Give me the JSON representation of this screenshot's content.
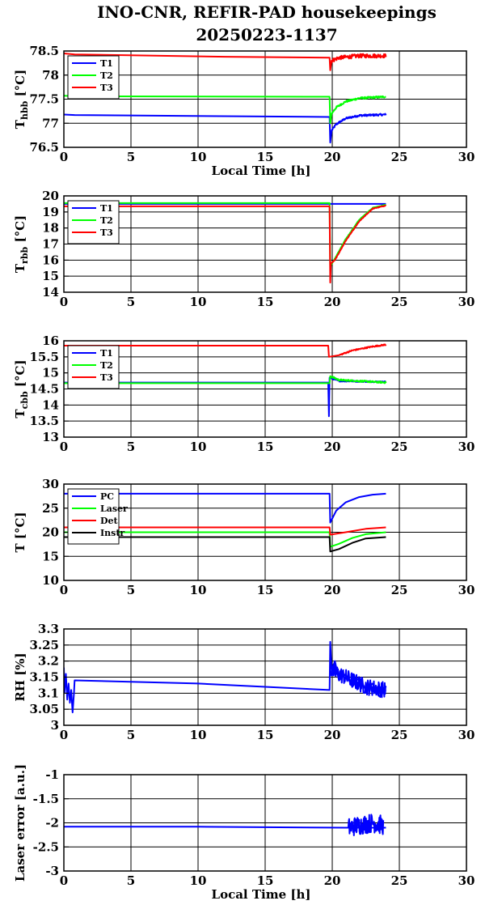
{
  "title": {
    "line1": "INO-CNR, REFIR-PAD housekeepings",
    "line2": "20250223-1137"
  },
  "colors": {
    "blue": "#0000ff",
    "green": "#00ff00",
    "red": "#ff0000",
    "black": "#000000",
    "grid": "#000000",
    "background": "#ffffff"
  },
  "chart_data": [
    {
      "type": "line",
      "id": "thbb",
      "ylabel": "T",
      "ylabel_sub": "hbb",
      "ylabel_unit": "[°C]",
      "xlabel": "Local Time [h]",
      "xlim": [
        0,
        30
      ],
      "ylim": [
        76.5,
        78.5
      ],
      "xticks": [
        "0",
        "5",
        "10",
        "15",
        "20",
        "25",
        "30"
      ],
      "yticks": [
        "76.5",
        "77",
        "77.5",
        "78",
        "78.5"
      ],
      "ytick_values": [
        76.5,
        77,
        77.5,
        78,
        78.5
      ],
      "grid": true,
      "legend_position": "top-left",
      "series": [
        {
          "name": "T1",
          "color": "#0000ff",
          "noise": 0.02,
          "points": [
            [
              0,
              77.18
            ],
            [
              0.8,
              77.17
            ],
            [
              19.8,
              77.13
            ],
            [
              19.85,
              76.6
            ],
            [
              19.95,
              76.85
            ],
            [
              20.3,
              76.98
            ],
            [
              21,
              77.1
            ],
            [
              22,
              77.16
            ],
            [
              24,
              77.18
            ]
          ]
        },
        {
          "name": "T2",
          "color": "#00ff00",
          "noise": 0.02,
          "points": [
            [
              0,
              77.57
            ],
            [
              0.8,
              77.56
            ],
            [
              19.8,
              77.55
            ],
            [
              19.85,
              77.0
            ],
            [
              19.95,
              77.2
            ],
            [
              20.3,
              77.33
            ],
            [
              21,
              77.45
            ],
            [
              22,
              77.52
            ],
            [
              24,
              77.55
            ]
          ]
        },
        {
          "name": "T3",
          "color": "#ff0000",
          "noise": 0.04,
          "points": [
            [
              0,
              78.45
            ],
            [
              0.8,
              78.43
            ],
            [
              12,
              78.38
            ],
            [
              19.8,
              78.36
            ],
            [
              19.85,
              78.1
            ],
            [
              19.95,
              78.3
            ],
            [
              20.5,
              78.36
            ],
            [
              22,
              78.4
            ],
            [
              24,
              78.4
            ]
          ]
        }
      ]
    },
    {
      "type": "line",
      "id": "trbb",
      "ylabel": "T",
      "ylabel_sub": "rbb",
      "ylabel_unit": "[°C]",
      "xlabel": "",
      "xlim": [
        0,
        30
      ],
      "ylim": [
        14,
        20
      ],
      "xticks": [
        "0",
        "5",
        "10",
        "15",
        "20",
        "25",
        "30"
      ],
      "yticks": [
        "14",
        "15",
        "16",
        "17",
        "18",
        "19",
        "20"
      ],
      "ytick_values": [
        14,
        15,
        16,
        17,
        18,
        19,
        20
      ],
      "grid": true,
      "legend_position": "top-left",
      "series": [
        {
          "name": "T1",
          "color": "#0000ff",
          "noise": 0,
          "points": [
            [
              0,
              19.5
            ],
            [
              19.8,
              19.5
            ],
            [
              24,
              19.5
            ]
          ]
        },
        {
          "name": "T2",
          "color": "#00ff00",
          "noise": 0.02,
          "points": [
            [
              0,
              19.55
            ],
            [
              19.8,
              19.55
            ],
            [
              19.85,
              15.6
            ],
            [
              20.2,
              16.1
            ],
            [
              21,
              17.3
            ],
            [
              22,
              18.5
            ],
            [
              23,
              19.25
            ],
            [
              24,
              19.45
            ]
          ]
        },
        {
          "name": "T3",
          "color": "#ff0000",
          "noise": 0.02,
          "points": [
            [
              0,
              19.35
            ],
            [
              19.8,
              19.35
            ],
            [
              19.85,
              14.6
            ],
            [
              19.9,
              15.8
            ],
            [
              20.2,
              16.0
            ],
            [
              21,
              17.2
            ],
            [
              22,
              18.4
            ],
            [
              23,
              19.2
            ],
            [
              24,
              19.4
            ]
          ]
        }
      ]
    },
    {
      "type": "line",
      "id": "tcbb",
      "ylabel": "T",
      "ylabel_sub": "cbb",
      "ylabel_unit": "[°C]",
      "xlabel": "",
      "xlim": [
        0,
        30
      ],
      "ylim": [
        13,
        16
      ],
      "xticks": [
        "0",
        "5",
        "10",
        "15",
        "20",
        "25",
        "30"
      ],
      "yticks": [
        "13",
        "13.5",
        "14",
        "14.5",
        "15",
        "15.5",
        "16"
      ],
      "ytick_values": [
        13,
        13.5,
        14,
        14.5,
        15,
        15.5,
        16
      ],
      "grid": true,
      "legend_position": "top-left",
      "series": [
        {
          "name": "T1",
          "color": "#0000ff",
          "noise": 0.02,
          "points": [
            [
              0,
              14.7
            ],
            [
              12,
              14.7
            ],
            [
              19.7,
              14.7
            ],
            [
              19.75,
              13.65
            ],
            [
              19.8,
              14.85
            ],
            [
              20.5,
              14.75
            ],
            [
              24,
              14.72
            ]
          ]
        },
        {
          "name": "T2",
          "color": "#00ff00",
          "noise": 0.025,
          "points": [
            [
              0,
              14.68
            ],
            [
              19.8,
              14.68
            ],
            [
              19.85,
              14.9
            ],
            [
              20.5,
              14.78
            ],
            [
              24,
              14.7
            ]
          ]
        },
        {
          "name": "T3",
          "color": "#ff0000",
          "noise": 0.02,
          "points": [
            [
              0,
              15.85
            ],
            [
              19.7,
              15.85
            ],
            [
              19.75,
              15.5
            ],
            [
              20.5,
              15.55
            ],
            [
              21.5,
              15.7
            ],
            [
              23,
              15.82
            ],
            [
              24,
              15.88
            ]
          ]
        }
      ]
    },
    {
      "type": "line",
      "id": "temps",
      "ylabel": "T [°C]",
      "ylabel_sub": "",
      "ylabel_unit": "",
      "xlabel": "",
      "xlim": [
        0,
        30
      ],
      "ylim": [
        10,
        30
      ],
      "xticks": [
        "0",
        "5",
        "10",
        "15",
        "20",
        "25",
        "30"
      ],
      "yticks": [
        "10",
        "15",
        "20",
        "25",
        "30"
      ],
      "ytick_values": [
        10,
        15,
        20,
        25,
        30
      ],
      "grid": true,
      "legend_position": "top-left",
      "series": [
        {
          "name": "PC",
          "color": "#0000ff",
          "noise": 0,
          "points": [
            [
              0,
              28
            ],
            [
              19.8,
              28
            ],
            [
              19.85,
              22
            ],
            [
              20.3,
              24.5
            ],
            [
              21,
              26.2
            ],
            [
              22,
              27.3
            ],
            [
              23,
              27.8
            ],
            [
              24,
              28
            ]
          ]
        },
        {
          "name": "Laser",
          "color": "#00ff00",
          "noise": 0,
          "points": [
            [
              0,
              20
            ],
            [
              19.8,
              20
            ],
            [
              19.85,
              17
            ],
            [
              20.5,
              17.6
            ],
            [
              21.5,
              18.8
            ],
            [
              22.5,
              19.6
            ],
            [
              24,
              20
            ]
          ]
        },
        {
          "name": "Det",
          "color": "#ff0000",
          "noise": 0,
          "points": [
            [
              0,
              21
            ],
            [
              19.8,
              21
            ],
            [
              19.85,
              19.5
            ],
            [
              21,
              20
            ],
            [
              22.5,
              20.7
            ],
            [
              24,
              21
            ]
          ]
        },
        {
          "name": "Instr",
          "color": "#000000",
          "noise": 0,
          "points": [
            [
              0,
              19
            ],
            [
              19.8,
              19
            ],
            [
              19.85,
              16
            ],
            [
              20.5,
              16.5
            ],
            [
              21.5,
              17.8
            ],
            [
              22.5,
              18.7
            ],
            [
              24,
              19
            ]
          ]
        }
      ]
    },
    {
      "type": "line",
      "id": "rh",
      "ylabel": "RH [%]",
      "ylabel_sub": "",
      "ylabel_unit": "",
      "xlabel": "",
      "xlim": [
        0,
        30
      ],
      "ylim": [
        3,
        3.3
      ],
      "xticks": [
        "0",
        "5",
        "10",
        "15",
        "20",
        "25",
        "30"
      ],
      "yticks": [
        "3",
        "3.05",
        "3.1",
        "3.15",
        "3.2",
        "3.25",
        "3.3"
      ],
      "ytick_values": [
        3,
        3.05,
        3.1,
        3.15,
        3.2,
        3.25,
        3.3
      ],
      "grid": true,
      "legend_position": "none",
      "series": [
        {
          "name": "",
          "color": "#0000ff",
          "noise": 0,
          "points": [
            [
              0,
              3.18
            ],
            [
              0.05,
              3.1
            ],
            [
              0.15,
              3.16
            ],
            [
              0.25,
              3.08
            ],
            [
              0.35,
              3.13
            ],
            [
              0.45,
              3.07
            ],
            [
              0.55,
              3.11
            ],
            [
              0.65,
              3.04
            ],
            [
              0.75,
              3.1
            ],
            [
              0.8,
              3.14
            ],
            [
              10,
              3.13
            ],
            [
              19.8,
              3.11
            ],
            [
              19.85,
              3.26
            ],
            [
              19.95,
              3.17
            ],
            [
              20.2,
              3.2
            ],
            [
              20.5,
              3.14
            ],
            [
              21,
              3.16
            ],
            [
              21.5,
              3.12
            ],
            [
              22,
              3.15
            ],
            [
              22.5,
              3.11
            ],
            [
              23,
              3.13
            ],
            [
              23.5,
              3.09
            ],
            [
              24,
              3.11
            ]
          ]
        },
        {
          "name": "",
          "color": "#0000ff",
          "noise": 0.025,
          "points": [
            [
              19.9,
              3.17
            ],
            [
              21,
              3.15
            ],
            [
              22.5,
              3.12
            ],
            [
              24,
              3.11
            ]
          ]
        }
      ]
    },
    {
      "type": "line",
      "id": "laser",
      "ylabel": "Laser error [a.u.]",
      "ylabel_sub": "",
      "ylabel_unit": "",
      "xlabel": "Local Time [h]",
      "xlim": [
        0,
        30
      ],
      "ylim": [
        -3,
        -1
      ],
      "xticks": [
        "0",
        "5",
        "10",
        "15",
        "20",
        "25",
        "30"
      ],
      "yticks": [
        "-3",
        "-2.5",
        "-2",
        "-1.5",
        "-1"
      ],
      "ytick_values": [
        -3,
        -2.5,
        -2,
        -1.5,
        -1
      ],
      "grid": true,
      "legend_position": "none",
      "series": [
        {
          "name": "",
          "color": "#0000ff",
          "noise": 0,
          "points": [
            [
              0,
              -2.08
            ],
            [
              10,
              -2.08
            ],
            [
              21,
              -2.1
            ],
            [
              24,
              -2.1
            ]
          ]
        },
        {
          "name": "",
          "color": "#0000ff",
          "noise": 0.2,
          "points": [
            [
              21.2,
              -2.1
            ],
            [
              22,
              -2.05
            ],
            [
              23,
              -2.0
            ],
            [
              23.8,
              -2.05
            ]
          ]
        }
      ]
    }
  ]
}
